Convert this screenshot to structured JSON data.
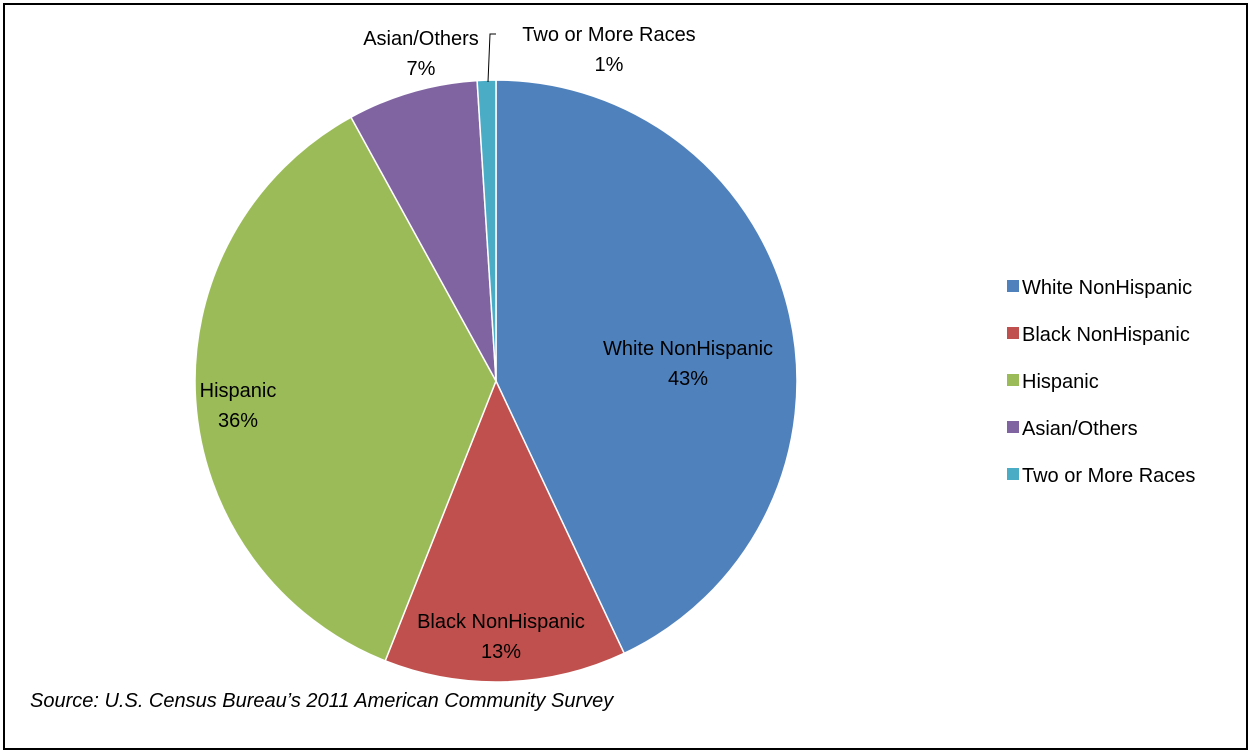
{
  "chart_data": {
    "type": "pie",
    "categories": [
      "White NonHispanic",
      "Black NonHispanic",
      "Hispanic",
      "Asian/Others",
      "Two or More Races"
    ],
    "values": [
      43,
      13,
      36,
      7,
      1
    ],
    "value_labels": [
      "43%",
      "13%",
      "36%",
      "7%",
      "1%"
    ],
    "colors": [
      "#4F81BD",
      "#C0504D",
      "#9BBB59",
      "#8064A2",
      "#4BACC6"
    ],
    "legend_position": "right",
    "start_angle": "top, clockwise"
  },
  "source_note": "Source: U.S. Census Bureau’s 2011 American Community Survey"
}
